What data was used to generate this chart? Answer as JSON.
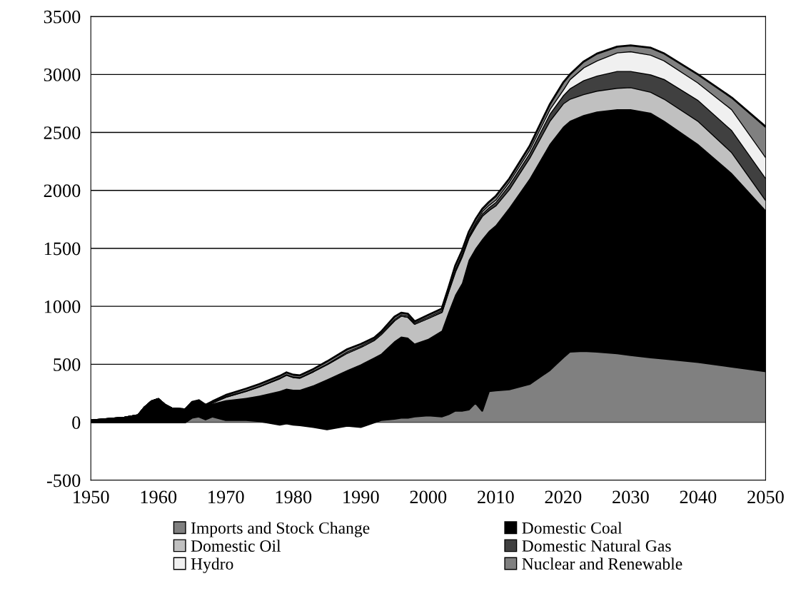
{
  "chart_data": {
    "type": "area",
    "stacked": true,
    "x": [
      1950,
      1955,
      1957,
      1958,
      1959,
      1960,
      1961,
      1962,
      1964,
      1965,
      1966,
      1967,
      1968,
      1970,
      1973,
      1975,
      1978,
      1979,
      1980,
      1981,
      1983,
      1985,
      1988,
      1990,
      1992,
      1993,
      1995,
      1996,
      1997,
      1998,
      2000,
      2002,
      2003,
      2004,
      2005,
      2006,
      2007,
      2008,
      2009,
      2010,
      2012,
      2015,
      2018,
      2020,
      2021,
      2023,
      2025,
      2028,
      2030,
      2033,
      2035,
      2040,
      2045,
      2050
    ],
    "series": [
      {
        "name": "Imports and Stock Change",
        "color": "#808080",
        "values": [
          0,
          0,
          0,
          0,
          0,
          0,
          0,
          0,
          0,
          40,
          50,
          25,
          50,
          20,
          20,
          10,
          -20,
          -10,
          -20,
          -25,
          -40,
          -60,
          -30,
          -40,
          0,
          20,
          30,
          40,
          40,
          50,
          60,
          50,
          70,
          100,
          100,
          110,
          170,
          100,
          270,
          275,
          285,
          330,
          450,
          560,
          610,
          615,
          610,
          595,
          580,
          560,
          550,
          520,
          480,
          440
        ]
      },
      {
        "name": "Domestic Coal",
        "color": "#000000",
        "values": [
          15,
          40,
          60,
          130,
          180,
          200,
          150,
          120,
          110,
          130,
          130,
          115,
          110,
          170,
          190,
          220,
          290,
          300,
          300,
          305,
          360,
          430,
          480,
          540,
          560,
          570,
          670,
          700,
          690,
          630,
          660,
          740,
          880,
          1000,
          1100,
          1290,
          1330,
          1480,
          1380,
          1425,
          1565,
          1770,
          1950,
          1990,
          1990,
          2035,
          2070,
          2105,
          2120,
          2110,
          2050,
          1880,
          1670,
          1390
        ]
      },
      {
        "name": "Domestic Oil",
        "color": "#c0c0c0",
        "values": [
          0,
          0,
          0,
          0,
          0,
          0,
          0,
          0,
          0,
          0,
          0,
          0,
          10,
          30,
          60,
          80,
          110,
          120,
          110,
          105,
          120,
          130,
          150,
          150,
          150,
          170,
          180,
          180,
          180,
          170,
          180,
          160,
          180,
          200,
          230,
          190,
          190,
          200,
          180,
          170,
          160,
          180,
          200,
          200,
          190,
          180,
          180,
          185,
          190,
          180,
          190,
          200,
          180,
          90
        ]
      },
      {
        "name": "Domestic Natural Gas",
        "color": "#404040",
        "values": [
          0,
          0,
          0,
          0,
          0,
          0,
          0,
          0,
          0,
          0,
          0,
          0,
          0,
          0,
          0,
          0,
          0,
          0,
          0,
          0,
          0,
          0,
          0,
          0,
          0,
          0,
          0,
          0,
          0,
          0,
          0,
          5,
          5,
          10,
          10,
          10,
          20,
          20,
          25,
          30,
          40,
          40,
          60,
          70,
          90,
          120,
          130,
          145,
          140,
          150,
          170,
          180,
          190,
          190
        ]
      },
      {
        "name": "Hydro",
        "color": "#f0f0f0",
        "values": [
          0,
          0,
          0,
          0,
          0,
          0,
          0,
          0,
          0,
          0,
          5,
          5,
          5,
          5,
          5,
          5,
          5,
          5,
          5,
          5,
          5,
          5,
          10,
          10,
          10,
          10,
          10,
          10,
          10,
          10,
          10,
          10,
          10,
          10,
          15,
          15,
          15,
          20,
          20,
          20,
          25,
          30,
          40,
          50,
          80,
          110,
          130,
          160,
          170,
          170,
          160,
          150,
          180,
          180
        ]
      },
      {
        "name": "Nuclear and Renewable",
        "color": "#808080",
        "values": [
          0,
          0,
          0,
          0,
          0,
          0,
          0,
          0,
          0,
          5,
          5,
          5,
          5,
          10,
          15,
          15,
          15,
          15,
          15,
          15,
          15,
          20,
          20,
          15,
          10,
          10,
          20,
          15,
          15,
          10,
          15,
          15,
          15,
          30,
          25,
          25,
          25,
          20,
          25,
          30,
          25,
          30,
          40,
          60,
          40,
          50,
          60,
          50,
          50,
          60,
          60,
          70,
          100,
          260
        ]
      }
    ],
    "xlim": [
      1950,
      2050
    ],
    "xticks": [
      1950,
      1960,
      1970,
      1980,
      1990,
      2000,
      2010,
      2020,
      2030,
      2040,
      2050
    ],
    "ylim": [
      -500,
      3500
    ],
    "yticks": [
      -500,
      0,
      500,
      1000,
      1500,
      2000,
      2500,
      3000,
      3500
    ],
    "grid": "y",
    "legend": "bottom"
  }
}
